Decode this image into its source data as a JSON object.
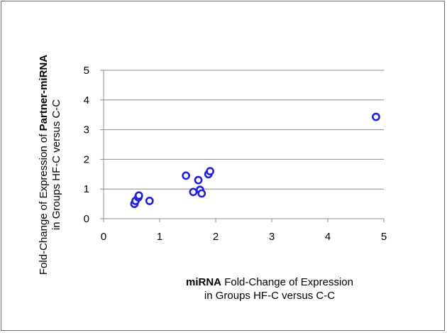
{
  "chart_data": {
    "type": "scatter",
    "xlabel": {
      "line1_bold": "miRNA",
      "line1_rest": " Fold-Change of Expression",
      "line2": "in Groups HF-C versus C-C"
    },
    "ylabel": {
      "line1_rest": "Fold-Change of Expression of ",
      "line1_bold": "Partner-miRNA",
      "line2": "in Groups HF-C versus C-C"
    },
    "xlim": [
      0,
      5
    ],
    "ylim": [
      0,
      5
    ],
    "x_ticks": [
      "0",
      "1",
      "2",
      "3",
      "4",
      "5"
    ],
    "y_ticks": [
      "0",
      "1",
      "2",
      "3",
      "4",
      "5"
    ],
    "grid": "horizontal",
    "legend": "none",
    "marker_color": "#1f1fe0",
    "points": [
      {
        "x": 0.55,
        "y": 0.5
      },
      {
        "x": 0.57,
        "y": 0.6
      },
      {
        "x": 0.62,
        "y": 0.72
      },
      {
        "x": 0.63,
        "y": 0.78
      },
      {
        "x": 0.82,
        "y": 0.6
      },
      {
        "x": 1.47,
        "y": 1.45
      },
      {
        "x": 1.6,
        "y": 0.9
      },
      {
        "x": 1.69,
        "y": 1.3
      },
      {
        "x": 1.72,
        "y": 0.97
      },
      {
        "x": 1.75,
        "y": 0.85
      },
      {
        "x": 1.87,
        "y": 1.5
      },
      {
        "x": 1.9,
        "y": 1.6
      },
      {
        "x": 4.86,
        "y": 3.43
      }
    ]
  }
}
